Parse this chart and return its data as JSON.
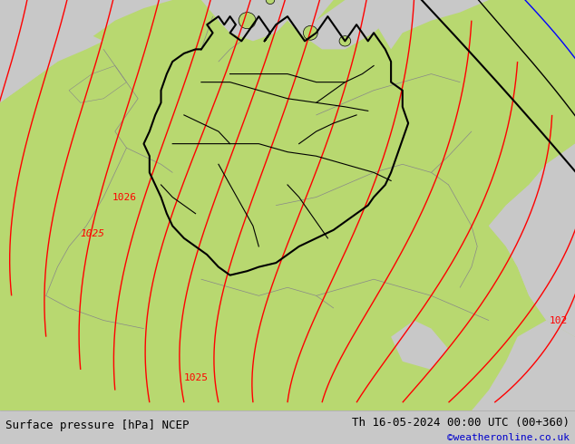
{
  "bottom_left_text": "Surface pressure [hPa] NCEP",
  "bottom_right_text": "Th 16-05-2024 00:00 UTC (00+360)",
  "bottom_credit": "©weatheronline.co.uk",
  "bottom_credit_color": "#0000cc",
  "background_color": "#c8c8c8",
  "land_color": "#b8d870",
  "sea_color": "#c8c8c8",
  "border_color": "#888888",
  "germany_border_color": "#000000",
  "isobar_color_red": "#ff0000",
  "isobar_color_black": "#000000",
  "isobar_color_blue": "#0000ff",
  "text_color": "#000000",
  "figsize": [
    6.34,
    4.9
  ],
  "dpi": 100
}
